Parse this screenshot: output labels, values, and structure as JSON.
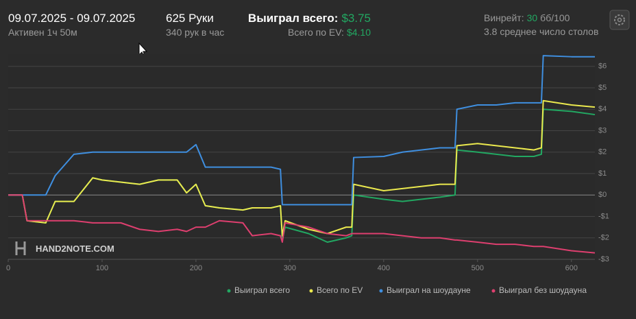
{
  "header": {
    "date_range": "09.07.2025 - 09.07.2025",
    "active": "Активен 1ч 50м",
    "hands": "625 Руки",
    "hands_per_hour": "340 рук в час",
    "won_total_label": "Выиграл всего:",
    "won_total_value": "$3.75",
    "ev_total_label": "Всего по EV:",
    "ev_total_value": "$4.10",
    "winrate_label": "Винрейт:",
    "winrate_value": "30",
    "winrate_unit": "бб/100",
    "avg_tables": "3.8 среднее число столов",
    "watermark": "HAND2NOTE.COM"
  },
  "chart_data": {
    "type": "line",
    "x": [
      0,
      15,
      20,
      40,
      50,
      70,
      90,
      100,
      120,
      140,
      160,
      180,
      190,
      200,
      210,
      225,
      250,
      260,
      280,
      290,
      292,
      295,
      320,
      340,
      360,
      366,
      368,
      400,
      420,
      440,
      460,
      476,
      478,
      500,
      520,
      540,
      560,
      568,
      570,
      600,
      625
    ],
    "series": [
      {
        "name": "Выиграл всего",
        "color": "#22a862",
        "values": [
          0,
          0,
          -1.2,
          -1.3,
          -0.3,
          -0.3,
          0.8,
          0.7,
          0.6,
          0.5,
          0.7,
          0.7,
          0.1,
          0.5,
          -0.5,
          -0.6,
          -0.7,
          -0.6,
          -0.6,
          -0.5,
          -2.1,
          -1.5,
          -1.8,
          -2.2,
          -2.0,
          -1.9,
          0,
          -0.2,
          -0.3,
          -0.2,
          -0.1,
          0,
          2.1,
          2.0,
          1.9,
          1.8,
          1.8,
          1.9,
          4.0,
          3.9,
          3.75
        ]
      },
      {
        "name": "Всего по EV",
        "color": "#ebe94e",
        "values": [
          0,
          0,
          -1.2,
          -1.3,
          -0.3,
          -0.3,
          0.8,
          0.7,
          0.6,
          0.5,
          0.7,
          0.7,
          0.1,
          0.5,
          -0.5,
          -0.6,
          -0.7,
          -0.6,
          -0.6,
          -0.5,
          -1.9,
          -1.2,
          -1.6,
          -1.8,
          -1.5,
          -1.5,
          0.5,
          0.2,
          0.3,
          0.4,
          0.5,
          0.5,
          2.3,
          2.4,
          2.3,
          2.2,
          2.1,
          2.2,
          4.4,
          4.2,
          4.1
        ]
      },
      {
        "name": "Выиграл на шоудауне",
        "color": "#3f8fe0",
        "values": [
          0,
          0,
          0,
          0,
          0.9,
          1.9,
          2.0,
          2.0,
          2.0,
          2.0,
          2.0,
          2.0,
          2.0,
          2.35,
          1.3,
          1.3,
          1.3,
          1.3,
          1.3,
          1.2,
          -0.45,
          -0.45,
          -0.45,
          -0.45,
          -0.45,
          -0.45,
          1.75,
          1.8,
          2.0,
          2.1,
          2.2,
          2.2,
          4.0,
          4.2,
          4.2,
          4.3,
          4.3,
          4.3,
          6.5,
          6.45,
          6.45
        ]
      },
      {
        "name": "Выиграл без шоудауна",
        "color": "#de3f6f",
        "values": [
          0,
          0,
          -1.2,
          -1.2,
          -1.2,
          -1.2,
          -1.3,
          -1.3,
          -1.3,
          -1.6,
          -1.7,
          -1.6,
          -1.7,
          -1.5,
          -1.5,
          -1.2,
          -1.3,
          -1.9,
          -1.8,
          -1.9,
          -2.2,
          -1.3,
          -1.5,
          -1.8,
          -1.9,
          -1.8,
          -1.8,
          -1.8,
          -1.9,
          -2.0,
          -2.0,
          -2.1,
          -2.1,
          -2.2,
          -2.3,
          -2.3,
          -2.4,
          -2.4,
          -2.4,
          -2.6,
          -2.7
        ]
      }
    ],
    "xlim": [
      0,
      625
    ],
    "xticks": [
      0,
      100,
      200,
      300,
      400,
      500,
      600
    ],
    "ylim": [
      -3,
      6.6
    ],
    "yticks": [
      {
        "value": -3,
        "label": "-$3"
      },
      {
        "value": -2,
        "label": "-$2"
      },
      {
        "value": -1,
        "label": "-$1"
      },
      {
        "value": 0,
        "label": "$0"
      },
      {
        "value": 1,
        "label": "$1"
      },
      {
        "value": 2,
        "label": "$2"
      },
      {
        "value": 3,
        "label": "$3"
      },
      {
        "value": 4,
        "label": "$4"
      },
      {
        "value": 5,
        "label": "$5"
      },
      {
        "value": 6,
        "label": "$6"
      }
    ],
    "grid": true
  }
}
